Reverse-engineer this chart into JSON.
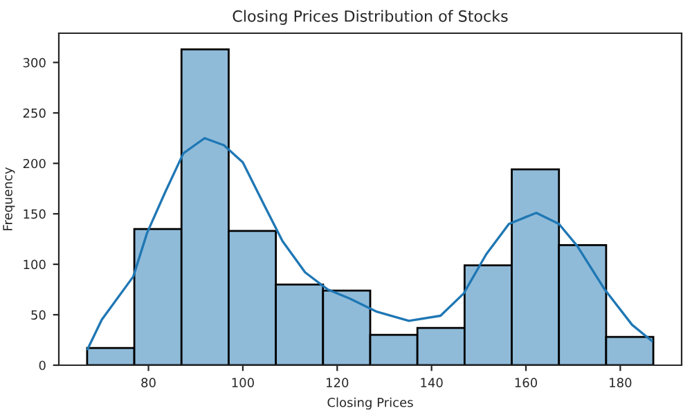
{
  "chart_data": {
    "type": "histogram",
    "title": "Closing Prices Distribution of Stocks",
    "xlabel": "Closing Prices",
    "ylabel": "Frequency",
    "bins": [
      67,
      77,
      87,
      97,
      107,
      117,
      127,
      137,
      147,
      157,
      167,
      177,
      187
    ],
    "values": [
      17,
      135,
      313,
      133,
      80,
      74,
      30,
      37,
      99,
      194,
      119,
      28
    ],
    "color": "#8fbbd9",
    "series": [
      {
        "type": "line",
        "color": "#1f77b4",
        "x": [
          67.1,
          70.1,
          76.8,
          79.7,
          83.5,
          87.4,
          91.9,
          96,
          100,
          104.6,
          108.4,
          113.2,
          118,
          122.7,
          128.4,
          135.2,
          141.9,
          146.8,
          151.6,
          156.4,
          162.2,
          167,
          170.9,
          176.7,
          182.5,
          186.7
        ],
        "values": [
          16,
          45,
          88,
          131,
          171,
          210,
          225,
          218,
          201,
          158,
          123,
          92,
          75,
          66,
          53,
          44,
          49,
          71,
          110,
          140,
          151,
          140,
          118,
          75,
          40,
          24
        ]
      }
    ],
    "xlim": [
      61,
      193
    ],
    "ylim": [
      0,
      329
    ],
    "xticks": [
      80,
      100,
      120,
      140,
      160,
      180
    ],
    "yticks": [
      0,
      50,
      100,
      150,
      200,
      250,
      300
    ],
    "grid": false
  }
}
